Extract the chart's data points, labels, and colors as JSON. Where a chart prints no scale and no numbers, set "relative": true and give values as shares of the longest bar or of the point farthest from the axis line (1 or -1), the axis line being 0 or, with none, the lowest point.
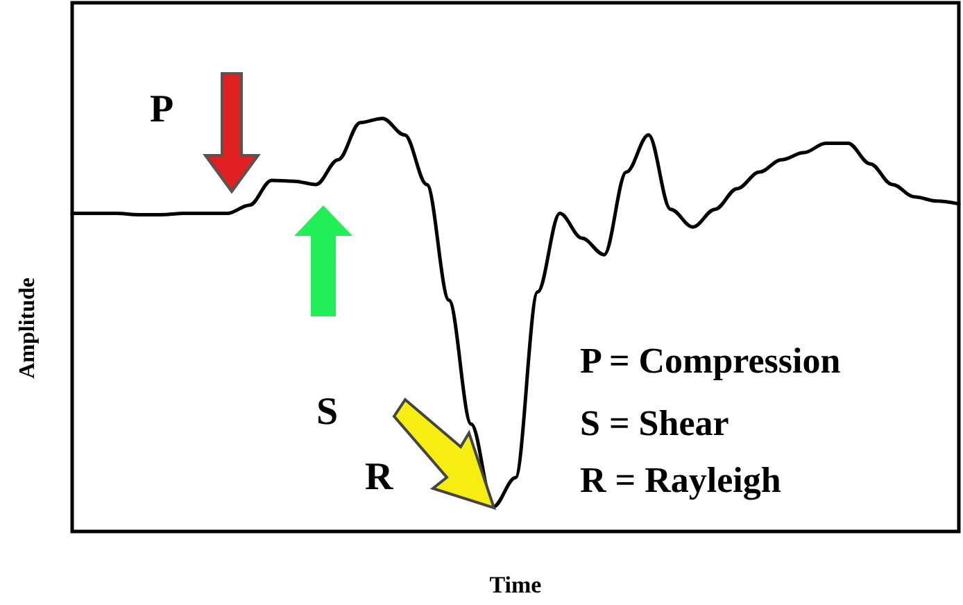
{
  "chart_data": {
    "type": "line",
    "relative": true,
    "xlabel": "Time",
    "ylabel": "Amplitude",
    "marker": "none",
    "line_style": "solid",
    "categories": [
      null,
      null,
      null,
      null,
      null,
      null,
      null,
      null,
      null,
      null,
      null,
      null,
      null,
      null,
      null,
      null,
      null,
      null,
      null,
      null,
      null,
      null,
      null,
      null,
      null,
      null,
      null,
      null,
      null,
      null,
      null,
      null,
      null,
      null,
      null,
      null,
      null,
      null,
      null,
      null,
      null
    ],
    "series": [
      {
        "color": "#000000",
        "values": [
          0.77,
          0.77,
          0.77,
          0.767,
          0.767,
          0.77,
          0.77,
          0.77,
          0.79,
          0.85,
          0.848,
          0.84,
          0.9,
          0.99,
          1,
          0.96,
          0.84,
          0.56,
          0.26,
          0.06,
          0.13,
          0.58,
          0.77,
          0.71,
          0.67,
          0.87,
          0.96,
          0.78,
          0.737,
          0.78,
          0.83,
          0.87,
          0.9,
          0.917,
          0.94,
          0.94,
          0.89,
          0.84,
          0.81,
          0.8,
          0.793
        ]
      }
    ],
    "annotations": [
      "P",
      "S",
      "R",
      "P = Compression",
      "S = Shear",
      "R = Rayleigh"
    ]
  }
}
